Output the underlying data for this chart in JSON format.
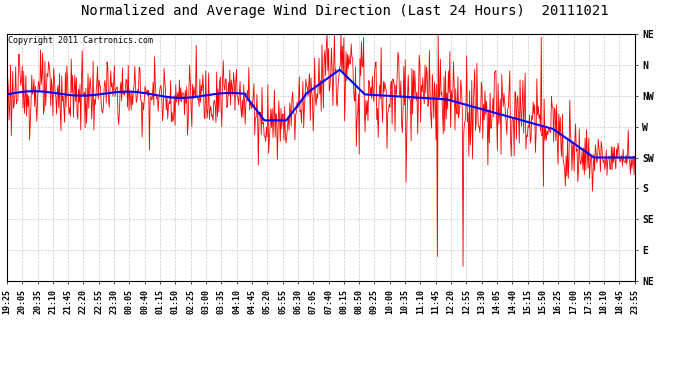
{
  "title": "Normalized and Average Wind Direction (Last 24 Hours)  20111021",
  "copyright": "Copyright 2011 Cartronics.com",
  "background_color": "#ffffff",
  "plot_bg_color": "#ffffff",
  "grid_color": "#cccccc",
  "ytick_labels": [
    "NE",
    "N",
    "NW",
    "W",
    "SW",
    "S",
    "SE",
    "E",
    "NE"
  ],
  "ytick_values": [
    1.0,
    0.875,
    0.75,
    0.625,
    0.5,
    0.375,
    0.25,
    0.125,
    0.0
  ],
  "xtick_labels": [
    "19:25",
    "20:05",
    "20:35",
    "21:10",
    "21:45",
    "22:20",
    "22:55",
    "23:30",
    "00:05",
    "00:40",
    "01:15",
    "01:50",
    "02:25",
    "03:00",
    "03:35",
    "04:10",
    "04:45",
    "05:20",
    "05:55",
    "06:30",
    "07:05",
    "07:40",
    "08:15",
    "08:50",
    "09:25",
    "10:00",
    "10:35",
    "11:10",
    "11:45",
    "12:20",
    "12:55",
    "13:30",
    "14:05",
    "14:40",
    "15:15",
    "15:50",
    "16:25",
    "17:00",
    "17:35",
    "18:10",
    "18:45",
    "23:55"
  ],
  "red_line_color": "#ff0000",
  "blue_line_color": "#0000ff",
  "title_fontsize": 10,
  "copyright_fontsize": 6,
  "tick_label_fontsize": 6,
  "ytick_label_fontsize": 7,
  "red_linewidth": 0.6,
  "blue_linewidth": 1.5
}
